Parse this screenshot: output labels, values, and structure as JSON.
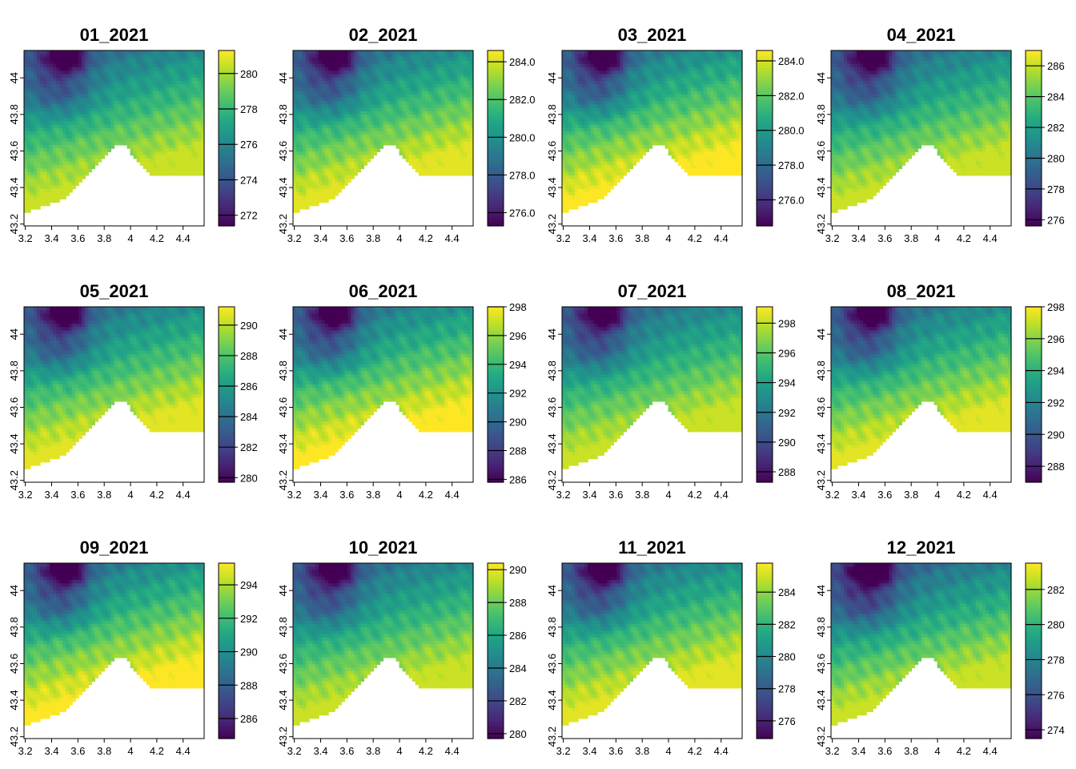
{
  "chart_data": [
    {
      "type": "heatmap",
      "title": "01_2021",
      "xticks": [
        "3.2",
        "3.4",
        "3.6",
        "3.8",
        "4",
        "4.2",
        "4.4"
      ],
      "yticks": [
        "43.2",
        "43.4",
        "43.6",
        "43.8",
        "44"
      ],
      "xlim": [
        3.19,
        4.56
      ],
      "ylim": [
        43.19,
        43.56
      ],
      "legend_ticks": [
        "272",
        "274",
        "276",
        "278",
        "280"
      ],
      "legend_range": [
        271.4,
        281.3
      ]
    },
    {
      "type": "heatmap",
      "title": "02_2021",
      "xticks": [
        "3.2",
        "3.4",
        "3.6",
        "3.8",
        "4",
        "4.2",
        "4.4"
      ],
      "yticks": [
        "43.2",
        "43.4",
        "43.6",
        "43.8",
        "44"
      ],
      "xlim": [
        3.19,
        4.56
      ],
      "ylim": [
        43.19,
        43.56
      ],
      "legend_ticks": [
        "276.0",
        "278.0",
        "280.0",
        "282.0",
        "284.0"
      ],
      "legend_range": [
        275.3,
        284.6
      ]
    },
    {
      "type": "heatmap",
      "title": "03_2021",
      "xticks": [
        "3.2",
        "3.4",
        "3.6",
        "3.8",
        "4",
        "4.2",
        "4.4"
      ],
      "yticks": [
        "43.2",
        "43.4",
        "43.6",
        "43.8",
        "44"
      ],
      "xlim": [
        3.19,
        4.56
      ],
      "ylim": [
        43.19,
        43.56
      ],
      "legend_ticks": [
        "276.0",
        "278.0",
        "280.0",
        "282.0",
        "284.0"
      ],
      "legend_range": [
        274.5,
        284.6
      ]
    },
    {
      "type": "heatmap",
      "title": "04_2021",
      "xticks": [
        "3.2",
        "3.4",
        "3.6",
        "3.8",
        "4",
        "4.2",
        "4.4"
      ],
      "yticks": [
        "43.2",
        "43.4",
        "43.6",
        "43.8",
        "44"
      ],
      "xlim": [
        3.19,
        4.56
      ],
      "ylim": [
        43.19,
        43.56
      ],
      "legend_ticks": [
        "276",
        "278",
        "280",
        "282",
        "284",
        "286"
      ],
      "legend_range": [
        275.6,
        287.0
      ]
    },
    {
      "type": "heatmap",
      "title": "05_2021",
      "xticks": [
        "3.2",
        "3.4",
        "3.6",
        "3.8",
        "4",
        "4.2",
        "4.4"
      ],
      "yticks": [
        "43.2",
        "43.4",
        "43.6",
        "43.8",
        "44"
      ],
      "xlim": [
        3.19,
        4.56
      ],
      "ylim": [
        43.19,
        43.56
      ],
      "legend_ticks": [
        "280",
        "282",
        "284",
        "286",
        "288",
        "290"
      ],
      "legend_range": [
        279.7,
        291.2
      ]
    },
    {
      "type": "heatmap",
      "title": "06_2021",
      "xticks": [
        "3.2",
        "3.4",
        "3.6",
        "3.8",
        "4",
        "4.2",
        "4.4"
      ],
      "yticks": [
        "43.2",
        "43.4",
        "43.6",
        "43.8",
        "44"
      ],
      "xlim": [
        3.19,
        4.56
      ],
      "ylim": [
        43.19,
        43.56
      ],
      "legend_ticks": [
        "286",
        "288",
        "290",
        "292",
        "294",
        "296",
        "298"
      ],
      "legend_range": [
        285.8,
        298.0
      ]
    },
    {
      "type": "heatmap",
      "title": "07_2021",
      "xticks": [
        "3.2",
        "3.4",
        "3.6",
        "3.8",
        "4",
        "4.2",
        "4.4"
      ],
      "yticks": [
        "43.2",
        "43.4",
        "43.6",
        "43.8",
        "44"
      ],
      "xlim": [
        3.19,
        4.56
      ],
      "ylim": [
        43.19,
        43.56
      ],
      "legend_ticks": [
        "288",
        "290",
        "292",
        "294",
        "296",
        "298"
      ],
      "legend_range": [
        287.3,
        299.1
      ]
    },
    {
      "type": "heatmap",
      "title": "08_2021",
      "xticks": [
        "3.2",
        "3.4",
        "3.6",
        "3.8",
        "4",
        "4.2",
        "4.4"
      ],
      "yticks": [
        "43.2",
        "43.4",
        "43.6",
        "43.8",
        "44"
      ],
      "xlim": [
        3.19,
        4.56
      ],
      "ylim": [
        43.19,
        43.56
      ],
      "legend_ticks": [
        "288",
        "290",
        "292",
        "294",
        "296",
        "298"
      ],
      "legend_range": [
        287.0,
        298.0
      ]
    },
    {
      "type": "heatmap",
      "title": "09_2021",
      "xticks": [
        "3.2",
        "3.4",
        "3.6",
        "3.8",
        "4",
        "4.2",
        "4.4"
      ],
      "yticks": [
        "43.2",
        "43.4",
        "43.6",
        "43.8",
        "44"
      ],
      "xlim": [
        3.19,
        4.56
      ],
      "ylim": [
        43.19,
        43.56
      ],
      "legend_ticks": [
        "286",
        "288",
        "290",
        "292",
        "294"
      ],
      "legend_range": [
        284.8,
        295.3
      ]
    },
    {
      "type": "heatmap",
      "title": "10_2021",
      "xticks": [
        "3.2",
        "3.4",
        "3.6",
        "3.8",
        "4",
        "4.2",
        "4.4"
      ],
      "yticks": [
        "43.2",
        "43.4",
        "43.6",
        "43.8",
        "44"
      ],
      "xlim": [
        3.19,
        4.56
      ],
      "ylim": [
        43.19,
        43.56
      ],
      "legend_ticks": [
        "280",
        "282",
        "284",
        "286",
        "288",
        "290"
      ],
      "legend_range": [
        279.7,
        290.4
      ]
    },
    {
      "type": "heatmap",
      "title": "11_2021",
      "xticks": [
        "3.2",
        "3.4",
        "3.6",
        "3.8",
        "4",
        "4.2",
        "4.4"
      ],
      "yticks": [
        "43.2",
        "43.4",
        "43.6",
        "43.8",
        "44"
      ],
      "xlim": [
        3.19,
        4.56
      ],
      "ylim": [
        43.19,
        43.56
      ],
      "legend_ticks": [
        "276",
        "278",
        "280",
        "282",
        "284"
      ],
      "legend_range": [
        274.9,
        285.8
      ]
    },
    {
      "type": "heatmap",
      "title": "12_2021",
      "xticks": [
        "3.2",
        "3.4",
        "3.6",
        "3.8",
        "4",
        "4.2",
        "4.4"
      ],
      "yticks": [
        "43.2",
        "43.4",
        "43.6",
        "43.8",
        "44"
      ],
      "xlim": [
        3.19,
        4.56
      ],
      "ylim": [
        43.19,
        43.56
      ],
      "legend_ticks": [
        "274",
        "276",
        "278",
        "280",
        "282"
      ],
      "legend_range": [
        273.5,
        283.5
      ]
    }
  ],
  "colors": {
    "viridis": [
      "#440154",
      "#482475",
      "#414487",
      "#355f8d",
      "#2a788e",
      "#21918c",
      "#22a884",
      "#44bf70",
      "#7ad151",
      "#bddf26",
      "#fde725"
    ],
    "sea": "#ffffff",
    "frame": "#000000"
  }
}
